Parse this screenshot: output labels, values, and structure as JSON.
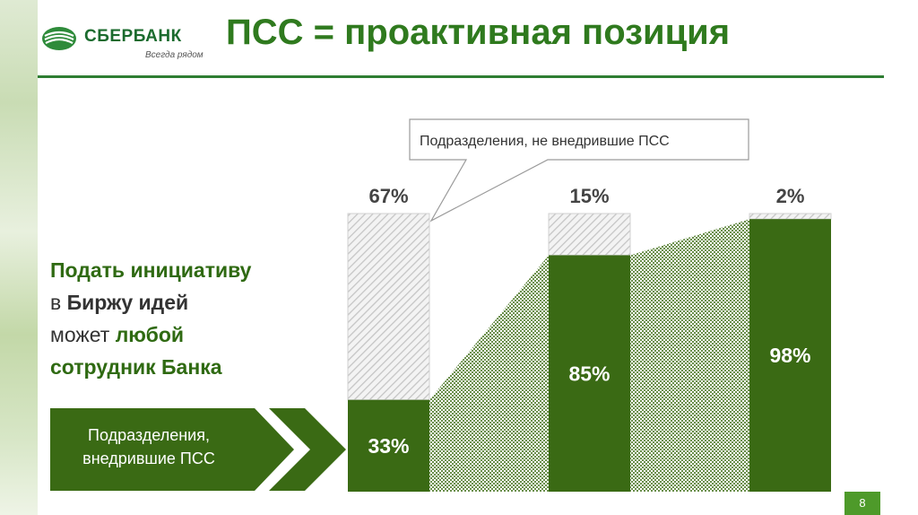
{
  "header": {
    "logo_name": "СБЕРБАНК",
    "logo_tagline": "Всегда рядом",
    "title": "ПСС = проактивная позиция"
  },
  "side_text": {
    "line1": "Подать инициативу",
    "line2_prefix": "в ",
    "line2_bold": "Биржу идей",
    "line3_prefix": "может ",
    "line3_bold": "любой",
    "line4": "сотрудник Банка"
  },
  "arrow_label": "Подразделения, внедрившие ПСС",
  "callout_label": "Подразделения, не внедрившие ПСС",
  "page_number": "8",
  "colors": {
    "implemented": "#3a6a14",
    "not_implemented_hatch": "#c8c8c8",
    "accent": "#2f7a1e"
  },
  "chart_data": {
    "type": "bar",
    "stacked": true,
    "categories": [
      "",
      "",
      ""
    ],
    "series": [
      {
        "name": "Подразделения, внедрившие ПСС",
        "values": [
          33,
          85,
          98
        ],
        "labels": [
          "33%",
          "85%",
          "98%"
        ]
      },
      {
        "name": "Подразделения, не внедрившие ПСС",
        "values": [
          67,
          15,
          2
        ],
        "labels": [
          "67%",
          "15%",
          "2%"
        ]
      }
    ],
    "ylim": [
      0,
      100
    ],
    "title": "",
    "xlabel": "",
    "ylabel": "",
    "grid": false
  }
}
